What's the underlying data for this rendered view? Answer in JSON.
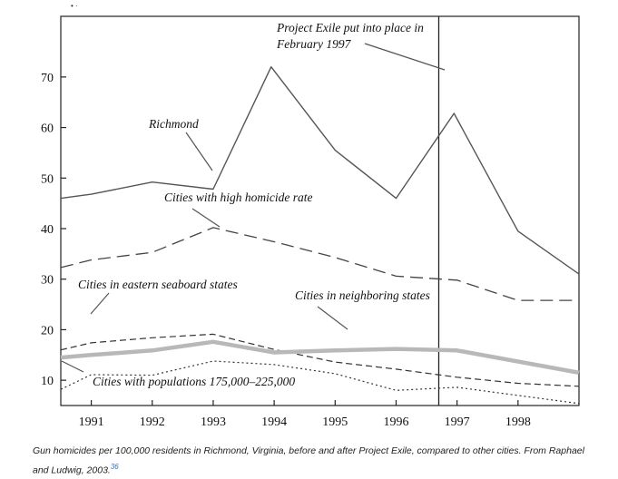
{
  "chart_data": {
    "type": "line",
    "x": [
      1990.5,
      1991,
      1992,
      1993,
      1994,
      1995,
      1996,
      1997,
      1998,
      1999.0
    ],
    "xticks": [
      1991,
      1992,
      1993,
      1994,
      1995,
      1996,
      1997,
      1998
    ],
    "xtick_labels": [
      "1991",
      "1992",
      "1993",
      "1994",
      "1995",
      "1996",
      "1997",
      "1998"
    ],
    "yticks": [
      10,
      20,
      30,
      40,
      50,
      60,
      70
    ],
    "ytick_labels": [
      "10",
      "20",
      "30",
      "40",
      "50",
      "60",
      "70"
    ],
    "xlim": [
      1990.5,
      1999.0
    ],
    "ylim": [
      5,
      82
    ],
    "grid": false,
    "series": [
      {
        "name": "Richmond",
        "style": "solid",
        "color": "#555555",
        "points": [
          [
            1990.5,
            46
          ],
          [
            1991,
            46.8
          ],
          [
            1992,
            49.2
          ],
          [
            1993,
            47.8
          ],
          [
            1993.95,
            72
          ],
          [
            1995,
            55.5
          ],
          [
            1996,
            46
          ],
          [
            1996.95,
            62.8
          ],
          [
            1998,
            39.5
          ],
          [
            1999.0,
            31
          ]
        ]
      },
      {
        "name": "Cities with high homicide rate",
        "style": "longdash",
        "color": "#444444",
        "points": [
          [
            1990.5,
            32.3
          ],
          [
            1991,
            33.8
          ],
          [
            1992,
            35.3
          ],
          [
            1993,
            40.2
          ],
          [
            1994,
            37.4
          ],
          [
            1995,
            34.3
          ],
          [
            1996,
            30.6
          ],
          [
            1997,
            29.8
          ],
          [
            1998,
            25.8
          ],
          [
            1999.0,
            25.8
          ]
        ]
      },
      {
        "name": "Cities in eastern seaboard states",
        "style": "dash",
        "color": "#333333",
        "points": [
          [
            1990.5,
            16
          ],
          [
            1991,
            17.4
          ],
          [
            1992,
            18.4
          ],
          [
            1993,
            19.1
          ],
          [
            1994,
            16.1
          ],
          [
            1995,
            13.6
          ],
          [
            1996,
            12.2
          ],
          [
            1997,
            10.6
          ],
          [
            1998,
            9.4
          ],
          [
            1999.0,
            8.8
          ]
        ]
      },
      {
        "name": "Cities in neighboring states",
        "style": "thick",
        "color": "#b8b8b8",
        "points": [
          [
            1990.5,
            14.5
          ],
          [
            1991,
            15.0
          ],
          [
            1992,
            15.9
          ],
          [
            1993,
            17.6
          ],
          [
            1994,
            15.5
          ],
          [
            1995,
            15.9
          ],
          [
            1996,
            16.2
          ],
          [
            1997,
            15.9
          ],
          [
            1998,
            13.7
          ],
          [
            1999.0,
            11.5
          ]
        ]
      },
      {
        "name": "Cities with populations 175,000–225,000",
        "style": "dot",
        "color": "#333333",
        "points": [
          [
            1990.5,
            8.2
          ],
          [
            1991,
            11.1
          ],
          [
            1992,
            11.0
          ],
          [
            1993,
            13.8
          ],
          [
            1994,
            13.1
          ],
          [
            1995,
            11.3
          ],
          [
            1996,
            8.0
          ],
          [
            1997,
            8.6
          ],
          [
            1998,
            7.0
          ],
          [
            1999.0,
            5.4
          ]
        ]
      }
    ],
    "event_line_x": 1996.7,
    "annotations": {
      "event_line1": "Project Exile put into place in",
      "event_line2": "February 1997",
      "richmond": "Richmond",
      "high_homicide": "Cities with high homicide rate",
      "eastern": "Cities in eastern seaboard states",
      "neighboring": "Cities in neighboring states",
      "populations": "Cities with populations 175,000–225,000"
    }
  },
  "caption": {
    "text": "Gun homicides per 100,000 residents in Richmond, Virginia, before and after Project Exile, compared to other cities. From Raphael and Ludwig, 2003.",
    "ref": "36"
  },
  "top_marks": "•          ·"
}
